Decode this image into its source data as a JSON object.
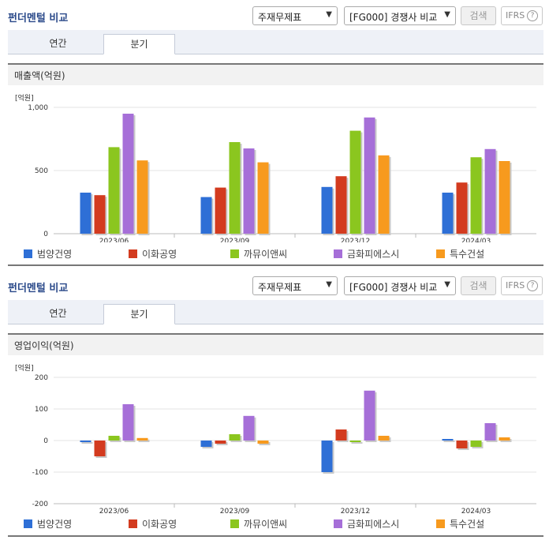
{
  "header": {
    "title": "펀더멘털 비교",
    "select1": "주재무제표",
    "select2": "[FG000] 경쟁사 비교",
    "search_label": "검색",
    "ifrs_label": "IFRS",
    "help_glyph": "?"
  },
  "tabs": [
    "연간",
    "분기"
  ],
  "active_tab": "분기",
  "colors": {
    "범양건영": "#2e6fd6",
    "이화공영": "#d33b1f",
    "까뮤이앤씨": "#8bc61f",
    "금화피에스시": "#a66fd8",
    "특수건설": "#f79a1e"
  },
  "chart_data": [
    {
      "type": "bar",
      "title": "매출액(억원)",
      "unit_label": "[억원]",
      "categories": [
        "2023/06",
        "2023/09",
        "2023/12",
        "2024/03"
      ],
      "ylim": [
        0,
        1000
      ],
      "yticks": [
        0,
        500,
        1000
      ],
      "ytick_labels": [
        "0",
        "500",
        "1,000"
      ],
      "series": [
        {
          "name": "범양건영",
          "values": [
            325,
            290,
            370,
            325
          ]
        },
        {
          "name": "이화공영",
          "values": [
            305,
            365,
            455,
            405
          ]
        },
        {
          "name": "까뮤이앤씨",
          "values": [
            685,
            725,
            815,
            605
          ]
        },
        {
          "name": "금화피에스시",
          "values": [
            950,
            675,
            920,
            670
          ]
        },
        {
          "name": "특수건설",
          "values": [
            580,
            565,
            620,
            575
          ]
        }
      ],
      "legend": "bottom"
    },
    {
      "type": "bar",
      "title": "영업이익(억원)",
      "unit_label": "[억원]",
      "categories": [
        "2023/06",
        "2023/09",
        "2023/12",
        "2024/03"
      ],
      "ylim": [
        -200,
        200
      ],
      "yticks": [
        -200,
        -100,
        0,
        100,
        200
      ],
      "ytick_labels": [
        "-200",
        "-100",
        "0",
        "100",
        "200"
      ],
      "series": [
        {
          "name": "범양건영",
          "values": [
            -5,
            -20,
            -100,
            5
          ]
        },
        {
          "name": "이화공영",
          "values": [
            -50,
            -10,
            35,
            -25
          ]
        },
        {
          "name": "까뮤이앤씨",
          "values": [
            15,
            20,
            -5,
            -20
          ]
        },
        {
          "name": "금화피에스시",
          "values": [
            115,
            78,
            158,
            55
          ]
        },
        {
          "name": "특수건설",
          "values": [
            8,
            -10,
            15,
            10
          ]
        }
      ],
      "legend": "bottom"
    }
  ]
}
